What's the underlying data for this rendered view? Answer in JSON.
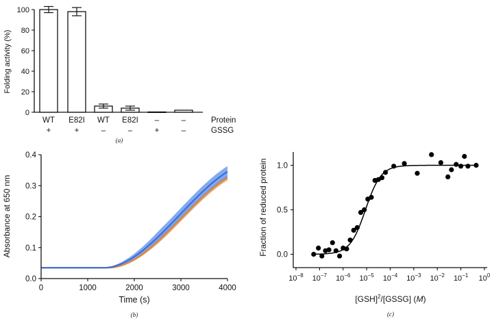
{
  "colors": {
    "series_blue": "#3a6fd8",
    "series_band": "#5b8ee8",
    "series_orange": "#e0873a",
    "points": "#000000"
  },
  "chart_data": [
    {
      "panel": "(a)",
      "type": "bar",
      "ylabel": "Folding activity (%)",
      "ylim": [
        0,
        100
      ],
      "yticks": [
        "0",
        "20",
        "40",
        "60",
        "80",
        "100"
      ],
      "values": [
        100,
        98,
        6,
        4,
        0.3,
        2
      ],
      "errors": [
        3,
        4,
        2,
        2,
        0,
        0
      ],
      "protein_row_label": "Protein",
      "gssg_row_label": "GSSG",
      "protein": [
        "WT",
        "E82I",
        "WT",
        "E82I",
        "–",
        "–"
      ],
      "gssg": [
        "+",
        "+",
        "–",
        "–",
        "+",
        "–"
      ]
    },
    {
      "panel": "(b)",
      "type": "line",
      "xlabel": "Time (s)",
      "ylabel": "Absorbance at 650 nm",
      "xlim": [
        0,
        4000
      ],
      "ylim": [
        0,
        0.4
      ],
      "xticks": [
        "0",
        "1000",
        "2000",
        "3000",
        "4000"
      ],
      "yticks": [
        "0.0",
        "0.1",
        "0.2",
        "0.3",
        "0.4"
      ],
      "series": [
        {
          "name": "blue",
          "baseline": 0.035,
          "lag": 1350,
          "end_value": 0.345,
          "band": 0.018
        },
        {
          "name": "orange",
          "baseline": 0.035,
          "lag": 1450,
          "end_value": 0.325,
          "band": 0.008
        }
      ]
    },
    {
      "panel": "(c)",
      "type": "scatter",
      "ylabel": "Fraction of reduced protein",
      "xlabel_prefix": "[GSH]",
      "xlabel_sup": "2",
      "xlabel_mid": "/[GSSG] (",
      "xlabel_unit": "M",
      "xlabel_suffix": ")",
      "xscale": "log",
      "xlim_exp": [
        -8,
        0
      ],
      "ylim": [
        -0.15,
        1.15
      ],
      "yticks": [
        "0.0",
        "0.5",
        "1.0"
      ],
      "xticks": [
        {
          "base": "10",
          "exp": "−8"
        },
        {
          "base": "10",
          "exp": "−7"
        },
        {
          "base": "10",
          "exp": "−6"
        },
        {
          "base": "10",
          "exp": "−5"
        },
        {
          "base": "10",
          "exp": "−4"
        },
        {
          "base": "10",
          "exp": "−3"
        },
        {
          "base": "10",
          "exp": "−2"
        },
        {
          "base": "10",
          "exp": "−1"
        },
        {
          "base": "10",
          "exp": "0"
        }
      ],
      "fit": {
        "midpoint_log": -5.05,
        "hill": 1.1,
        "bottom": 0.0,
        "top": 1.0
      },
      "points": [
        [
          -7.25,
          0.0
        ],
        [
          -7.05,
          0.07
        ],
        [
          -6.9,
          -0.02
        ],
        [
          -6.75,
          0.04
        ],
        [
          -6.6,
          0.05
        ],
        [
          -6.45,
          0.13
        ],
        [
          -6.3,
          0.04
        ],
        [
          -6.15,
          -0.02
        ],
        [
          -6.0,
          0.07
        ],
        [
          -5.85,
          0.06
        ],
        [
          -5.7,
          0.16
        ],
        [
          -5.55,
          0.27
        ],
        [
          -5.4,
          0.3
        ],
        [
          -5.25,
          0.47
        ],
        [
          -5.1,
          0.5
        ],
        [
          -4.95,
          0.62
        ],
        [
          -4.8,
          0.64
        ],
        [
          -4.65,
          0.83
        ],
        [
          -4.5,
          0.84
        ],
        [
          -4.35,
          0.86
        ],
        [
          -4.2,
          0.92
        ],
        [
          -3.85,
          0.99
        ],
        [
          -3.4,
          1.02
        ],
        [
          -2.85,
          0.91
        ],
        [
          -2.25,
          1.12
        ],
        [
          -1.85,
          1.03
        ],
        [
          -1.55,
          0.87
        ],
        [
          -1.4,
          0.95
        ],
        [
          -1.2,
          1.01
        ],
        [
          -1.0,
          0.99
        ],
        [
          -0.85,
          1.1
        ],
        [
          -0.7,
          0.99
        ],
        [
          -0.35,
          1.0
        ]
      ]
    }
  ]
}
